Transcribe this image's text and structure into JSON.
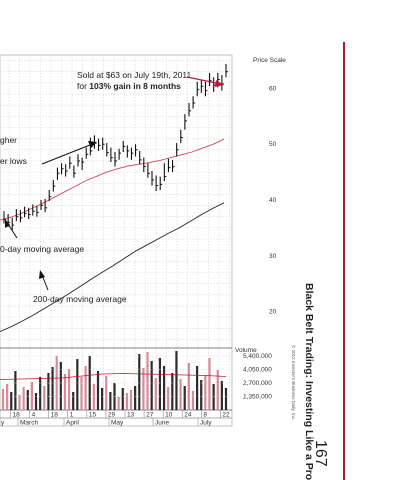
{
  "page": {
    "title": "Black Belt Trading: Investing Like a Pro",
    "number": "167",
    "copyright": "© 2012 Investor's Business Daily, Inc."
  },
  "chart_data": {
    "type": "line",
    "price_axis": {
      "label": "Price Scale",
      "ticks": [
        20,
        30,
        40,
        50,
        60
      ],
      "ylim": [
        14,
        66
      ]
    },
    "volume_axis": {
      "label": "Volume",
      "ticks": [
        "5,400,000",
        "4,050,000",
        "2,700,000",
        "1,350,000"
      ],
      "tick_values": [
        5400000,
        4050000,
        2700000,
        1350000
      ],
      "ylim": [
        0,
        6200000
      ]
    },
    "date_ticks": [
      "18",
      "4",
      "18",
      "1",
      "15",
      "29",
      "13",
      "27",
      "10",
      "24",
      "8",
      "22"
    ],
    "months": [
      "y",
      "March",
      "April",
      "May",
      "June",
      "July"
    ],
    "annotations": {
      "sell_line1": "Sold at $63 on July 19th, 2011",
      "sell_line2_prefix": "for ",
      "sell_line2_bold": "103% gain in 8 months",
      "higher_lows_1": "gher",
      "higher_lows_2": "er lows",
      "ma50_label": "0-day moving average",
      "ma200_label": "200-day moving average"
    },
    "price_bars": [
      [
        36.5,
        38,
        35.8
      ],
      [
        36.0,
        37.5,
        35.2
      ],
      [
        35.5,
        36.8,
        34.6
      ],
      [
        37,
        38.4,
        36.2
      ],
      [
        36.8,
        38.2,
        36.0
      ],
      [
        37.6,
        38.8,
        36.9
      ],
      [
        37.4,
        38.6,
        36.6
      ],
      [
        38,
        39.2,
        37.2
      ],
      [
        37.8,
        39,
        37
      ],
      [
        39,
        40,
        38.2
      ],
      [
        38.6,
        40.2,
        37.8
      ],
      [
        40.6,
        41.8,
        39.8
      ],
      [
        42.5,
        43.6,
        41.5
      ],
      [
        44.8,
        45.8,
        43.6
      ],
      [
        45.6,
        46.6,
        44.6
      ],
      [
        45.2,
        46.4,
        44.2
      ],
      [
        46.6,
        47.8,
        45.6
      ],
      [
        44.8,
        46.2,
        44.0
      ],
      [
        47.0,
        48.2,
        46.0
      ],
      [
        46.8,
        47.6,
        45.4
      ],
      [
        48.2,
        49.4,
        47.4
      ],
      [
        48.8,
        51.2,
        48.0
      ],
      [
        50.2,
        51.6,
        49.2
      ],
      [
        49.8,
        51.0,
        48.8
      ],
      [
        50.0,
        51.2,
        49.0
      ],
      [
        48.5,
        50.2,
        47.8
      ],
      [
        47.6,
        49.4,
        46.8
      ],
      [
        47.0,
        48.6,
        46.0
      ],
      [
        48.4,
        49.2,
        47.2
      ],
      [
        49.6,
        50.6,
        48.6
      ],
      [
        48.8,
        49.8,
        47.6
      ],
      [
        48.4,
        49.4,
        47.2
      ],
      [
        49.0,
        50.0,
        47.8
      ],
      [
        47.2,
        48.8,
        46.4
      ],
      [
        46.0,
        47.6,
        45.0
      ],
      [
        44.8,
        46.6,
        44.0
      ],
      [
        43.6,
        45.2,
        42.6
      ],
      [
        42.6,
        44.4,
        41.6
      ],
      [
        42.8,
        44.2,
        41.8
      ],
      [
        44.2,
        46.6,
        43.4
      ],
      [
        45.8,
        47.4,
        45.0
      ],
      [
        46.0,
        47.2,
        45.0
      ],
      [
        49.0,
        50.2,
        47.8
      ],
      [
        51.2,
        52.6,
        50.2
      ],
      [
        54.2,
        55.4,
        52.6
      ],
      [
        56.0,
        57.4,
        55.0
      ],
      [
        57.4,
        58.6,
        56.4
      ],
      [
        59.8,
        61.2,
        58.6
      ],
      [
        60.4,
        61.6,
        59.2
      ],
      [
        59.6,
        61.2,
        58.6
      ],
      [
        61.4,
        62.8,
        60.4
      ],
      [
        60.6,
        62.0,
        59.4
      ],
      [
        61.6,
        62.8,
        60.2
      ],
      [
        60.8,
        62.4,
        59.6
      ],
      [
        63.0,
        64.4,
        62.0
      ]
    ],
    "ma50": [
      36.4,
      36.9,
      37.6,
      38.5,
      39.4,
      40.4,
      41.4,
      42.4,
      43.4,
      44.2,
      45.0,
      45.6,
      46.1,
      46.4,
      46.7,
      47.1,
      47.6,
      48.1,
      48.6,
      49.3,
      50.0,
      50.9
    ],
    "ma200": [
      16.4,
      17.3,
      18.3,
      19.4,
      20.6,
      21.8,
      23.0,
      24.3,
      25.6,
      26.9,
      28.1,
      29.4,
      30.7,
      31.8,
      32.9,
      34.0,
      35.0,
      36.2,
      37.4,
      38.5,
      39.5
    ],
    "volume": [
      2100000,
      2600000,
      1800000,
      3900000,
      1500000,
      2300000,
      2000000,
      2800000,
      1700000,
      3300000,
      2400000,
      3700000,
      4300000,
      5400000,
      4800000,
      3600000,
      4100000,
      1800000,
      5100000,
      3300000,
      4400000,
      5400000,
      2600000,
      3900000,
      2200000,
      3400000,
      1800000,
      2700000,
      1300000,
      2200000,
      1700000,
      2000000,
      2400000,
      5600000,
      4200000,
      5800000,
      4900000,
      3200000,
      5200000,
      4400000,
      2300000,
      3700000,
      5900000,
      3100000,
      2400000,
      4700000,
      1900000,
      4400000,
      3000000,
      3500000,
      5200000,
      2600000,
      4000000,
      2900000,
      2200000
    ],
    "volume_avg": [
      3050000,
      3100000,
      3150000,
      3200000,
      3400000,
      3600000,
      3650000,
      3600000,
      3550000,
      3500000,
      3450000,
      3350000
    ]
  }
}
